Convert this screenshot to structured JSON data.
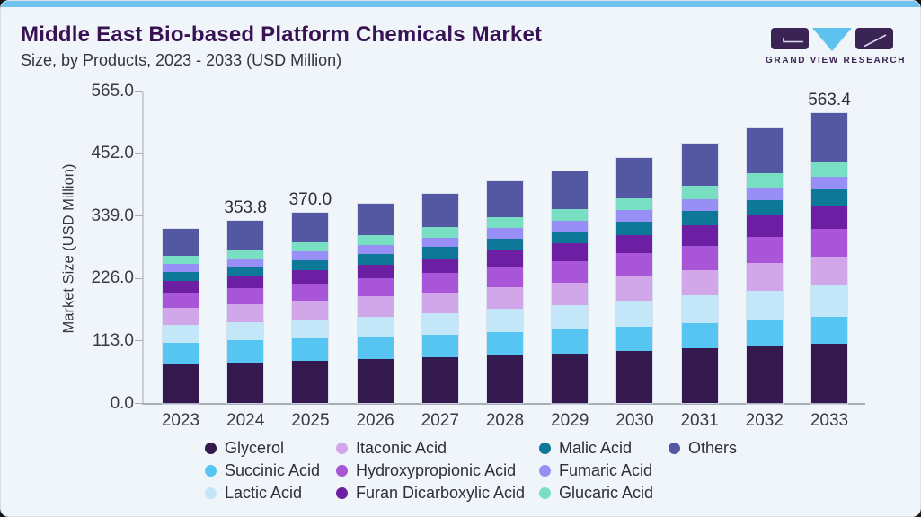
{
  "header": {
    "title": "Middle East Bio-based Platform Chemicals Market",
    "subtitle": "Size, by Products, 2023 - 2033 (USD Million)",
    "logo_text": "GRAND VIEW RESEARCH"
  },
  "colors": {
    "accent_strip": "#6fc2ec",
    "card_background": "#eff5f9",
    "title_text": "#381253",
    "body_text": "#33343e",
    "logo_purple": "#3a2453",
    "logo_blue": "#5ec2ee"
  },
  "chart_data": {
    "type": "bar",
    "stacked": true,
    "title": "Middle East Bio-based Platform Chemicals Market Size, by Products, 2023 - 2033 (USD Million)",
    "xlabel": "",
    "ylabel": "Market Size (USD Million)",
    "ylim": [
      0,
      565
    ],
    "grid": false,
    "legend_position": "bottom",
    "categories": [
      "2023",
      "2024",
      "2025",
      "2026",
      "2027",
      "2028",
      "2029",
      "2030",
      "2031",
      "2032",
      "2033"
    ],
    "y_tick_labels": [
      "565.0",
      "452.0",
      "339.0",
      "226.0",
      "113.0",
      "0.0"
    ],
    "y_tick_values": [
      565,
      452,
      339,
      226,
      113,
      0
    ],
    "bar_total_labels": [
      "",
      "353.8",
      "370.0",
      "",
      "",
      "",
      "",
      "",
      "",
      "",
      "563.4"
    ],
    "totals_estimated": [
      338.3,
      353.8,
      370.0,
      387.1,
      406.0,
      430.0,
      450.0,
      476.0,
      504.1,
      533.9,
      563.4
    ],
    "series": [
      {
        "name": "Glycerol",
        "color": "#33194d",
        "values": [
          76.5,
          79.4,
          82.2,
          85.3,
          88.6,
          93.0,
          96.4,
          101.0,
          105.9,
          111.1,
          116.0
        ]
      },
      {
        "name": "Succinic Acid",
        "color": "#57c5f1",
        "values": [
          41.7,
          42.4,
          43.1,
          43.8,
          44.6,
          45.9,
          46.7,
          47.9,
          49.3,
          50.7,
          51.9
        ]
      },
      {
        "name": "Lactic Acid",
        "color": "#c3e7f9",
        "values": [
          33.5,
          35.3,
          37.3,
          39.3,
          41.7,
          44.5,
          46.9,
          50.0,
          53.3,
          57.0,
          60.6
        ]
      },
      {
        "name": "Itaconic Acid",
        "color": "#d2a7ea",
        "values": [
          33.7,
          35.2,
          36.8,
          38.5,
          40.3,
          42.6,
          44.6,
          47.0,
          49.8,
          52.6,
          55.4
        ]
      },
      {
        "name": "Hydroxypropionic Acid",
        "color": "#a855d8",
        "values": [
          30.1,
          31.7,
          33.4,
          35.2,
          37.3,
          39.7,
          41.8,
          44.6,
          47.5,
          50.6,
          53.7
        ]
      },
      {
        "name": "Furan Dicarboxylic Acid",
        "color": "#6c1fa2",
        "values": [
          22.1,
          23.6,
          25.2,
          27.0,
          28.8,
          31.1,
          33.3,
          35.9,
          38.7,
          41.8,
          45.0
        ]
      },
      {
        "name": "Malic Acid",
        "color": "#0d7898",
        "values": [
          17.4,
          18.3,
          19.4,
          20.4,
          21.6,
          23.0,
          24.2,
          25.8,
          27.6,
          29.3,
          31.2
        ]
      },
      {
        "name": "Fumaric Acid",
        "color": "#978ff6",
        "values": [
          14.9,
          15.7,
          16.5,
          17.3,
          18.2,
          19.4,
          20.4,
          21.7,
          23.1,
          24.6,
          26.0
        ]
      },
      {
        "name": "Glucaric Acid",
        "color": "#79dfc3",
        "values": [
          16.3,
          17.2,
          18.1,
          19.1,
          20.2,
          21.6,
          22.8,
          24.3,
          25.9,
          27.6,
          29.4
        ]
      },
      {
        "name": "Others",
        "color": "#5457a1",
        "values": [
          52.1,
          55.0,
          58.0,
          61.2,
          64.7,
          69.2,
          72.9,
          77.8,
          83.0,
          88.6,
          94.2
        ]
      }
    ],
    "legend_rows": [
      [
        "Glycerol",
        "Itaconic Acid",
        "Malic Acid",
        "Others"
      ],
      [
        "Succinic Acid",
        "Hydroxypropionic Acid",
        "Fumaric Acid"
      ],
      [
        "Lactic Acid",
        "Furan Dicarboxylic Acid",
        "Glucaric Acid"
      ]
    ]
  }
}
